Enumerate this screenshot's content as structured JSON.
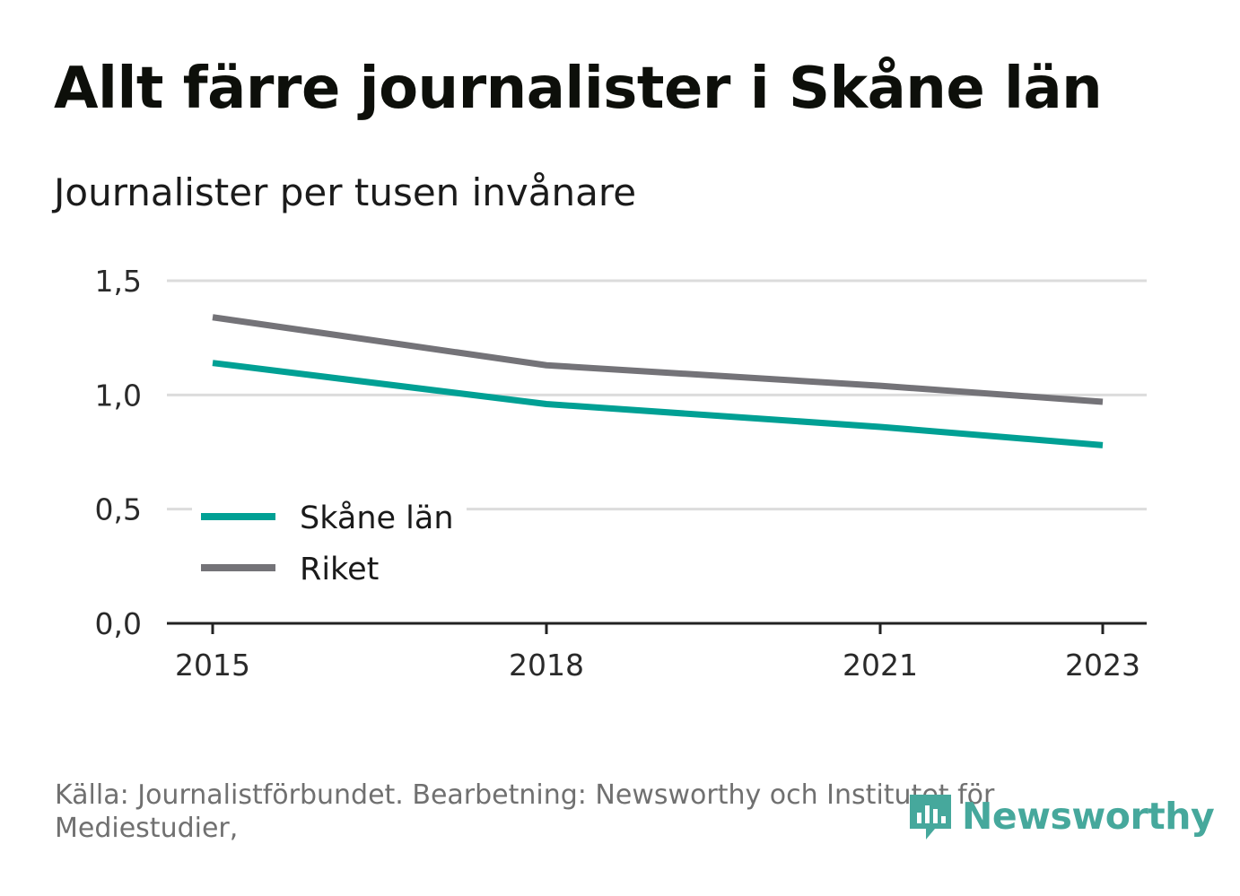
{
  "title": "Allt färre journalister i Skåne län",
  "subtitle": "Journalister per tusen invånare",
  "source": "Källa: Journalistförbundet. Bearbetning: Newsworthy och Institutet för Mediestudier,",
  "logo": {
    "text": "Newsworthy",
    "icon": "newsworthy-logo-icon"
  },
  "colors": {
    "skane": "#00a094",
    "riket": "#747378",
    "grid": "#dcdcdc",
    "axis": "#222222",
    "logo": "#46a89c"
  },
  "chart_data": {
    "type": "line",
    "x": [
      2015,
      2018,
      2021,
      2023
    ],
    "xticks": [
      "2015",
      "2018",
      "2021",
      "2023"
    ],
    "ylim": [
      0,
      1.5
    ],
    "yticks": [
      "0,0",
      "0,5",
      "1,0",
      "1,5"
    ],
    "series": [
      {
        "name": "Skåne län",
        "values": [
          1.14,
          0.96,
          0.86,
          0.78
        ]
      },
      {
        "name": "Riket",
        "values": [
          1.34,
          1.13,
          1.04,
          0.97
        ]
      }
    ],
    "legend": "bottom-left",
    "grid": true
  }
}
